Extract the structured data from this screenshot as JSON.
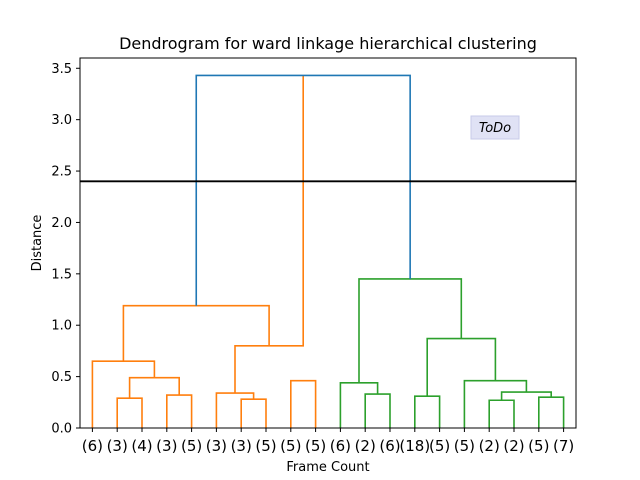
{
  "chart_data": {
    "type": "dendrogram",
    "title": "Dendrogram for ward linkage hierarchical clustering",
    "xlabel": "Frame Count",
    "ylabel": "Distance",
    "ylim": [
      0,
      3.6
    ],
    "yticks": [
      "0.0",
      "0.5",
      "1.0",
      "1.5",
      "2.0",
      "2.5",
      "3.0",
      "3.5"
    ],
    "leaf_labels": [
      "(6)",
      "(3)",
      "(4)",
      "(3)",
      "(5)",
      "(3)",
      "(3)",
      "(5)",
      "(5)",
      "(5)",
      "(6)",
      "(2)",
      "(6)",
      "(18)",
      "(5)",
      "(5)",
      "(2)",
      "(2)",
      "(5)",
      "(7)"
    ],
    "threshold": 2.4,
    "annotation": "ToDo",
    "colors": {
      "cluster_1": "#ff7f0e",
      "cluster_2": "#2ca02c",
      "link_above": "#1f77b4",
      "threshold_line": "#000000",
      "annotation_bg": "#e0e2f5"
    },
    "merges": [
      {
        "left": 1,
        "right": 2,
        "height": 0.29,
        "color": "cluster_1"
      },
      {
        "left": 3,
        "right": 4,
        "height": 0.32,
        "color": "cluster_1"
      },
      {
        "left": 1.5,
        "right": 3.5,
        "height": 0.49,
        "color": "cluster_1"
      },
      {
        "left": 0,
        "right": 2.5,
        "height": 0.65,
        "color": "cluster_1"
      },
      {
        "left": 6,
        "right": 7,
        "height": 0.28,
        "color": "cluster_1"
      },
      {
        "left": 5,
        "right": 6.5,
        "height": 0.34,
        "color": "cluster_1"
      },
      {
        "left": 8,
        "right": 9,
        "height": 0.46,
        "color": "cluster_1"
      },
      {
        "left": 5.75,
        "right": 8.5,
        "height": 0.8,
        "color": "cluster_1"
      },
      {
        "left": 1.25,
        "right": 7.125,
        "height": 1.19,
        "color": "cluster_1"
      },
      {
        "left": 11,
        "right": 12,
        "height": 0.33,
        "color": "cluster_2"
      },
      {
        "left": 10,
        "right": 11.5,
        "height": 0.44,
        "color": "cluster_2"
      },
      {
        "left": 13,
        "right": 14,
        "height": 0.31,
        "color": "cluster_2"
      },
      {
        "left": 16,
        "right": 17,
        "height": 0.27,
        "color": "cluster_2"
      },
      {
        "left": 18,
        "right": 19,
        "height": 0.3,
        "color": "cluster_2"
      },
      {
        "left": 16.5,
        "right": 18.5,
        "height": 0.35,
        "color": "cluster_2"
      },
      {
        "left": 15,
        "right": 17.5,
        "height": 0.46,
        "color": "cluster_2"
      },
      {
        "left": 13.5,
        "right": 16.25,
        "height": 0.87,
        "color": "cluster_2"
      },
      {
        "left": 10.75,
        "right": 14.875,
        "height": 1.45,
        "color": "cluster_2"
      },
      {
        "left": 4.1875,
        "right": 12.8125,
        "height": 3.43,
        "color": "link_above"
      }
    ]
  }
}
